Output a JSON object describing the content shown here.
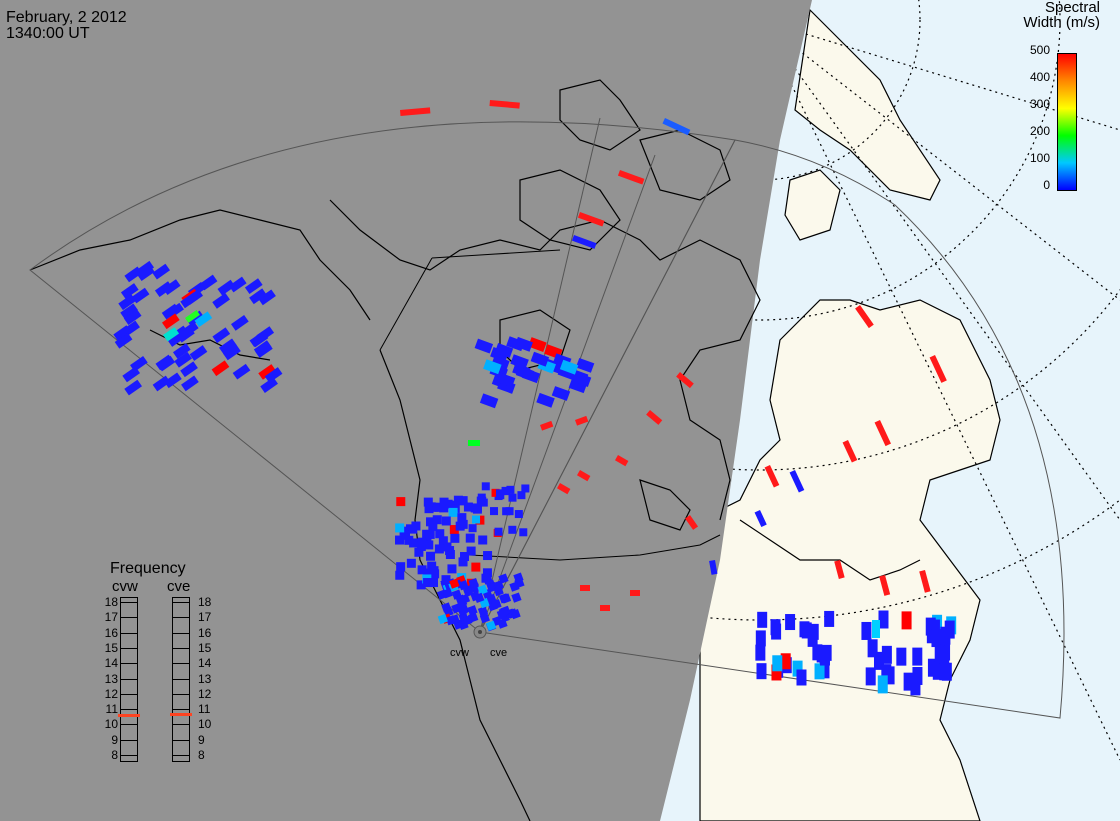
{
  "header": {
    "date": "February, 2 2012",
    "time": "1340:00 UT"
  },
  "colorbar": {
    "title_line1": "Spectral",
    "title_line2": "Width (m/s)",
    "ticks": [
      "500",
      "400",
      "300",
      "200",
      "100",
      "0"
    ],
    "min": 0,
    "max": 500,
    "colors": [
      "#0000ff",
      "#00c8ff",
      "#00ff00",
      "#ffff00",
      "#ff8800",
      "#ff0000"
    ]
  },
  "frequency_panel": {
    "title": "Frequency",
    "radars": [
      {
        "name": "cvw",
        "mhz": 10.6
      },
      {
        "name": "cve",
        "mhz": 10.7
      }
    ],
    "ticks": [
      "18",
      "17",
      "16",
      "15",
      "14",
      "13",
      "12",
      "11",
      "10",
      "9",
      "8"
    ],
    "range_mhz": [
      8,
      18
    ]
  },
  "sites": [
    {
      "name": "cvw"
    },
    {
      "name": "cve"
    }
  ],
  "legend_colors": {
    "night": "#939393",
    "day": "#fbf9ec",
    "ocean_day": "#e7f4fb",
    "fov_line": "#555555"
  }
}
